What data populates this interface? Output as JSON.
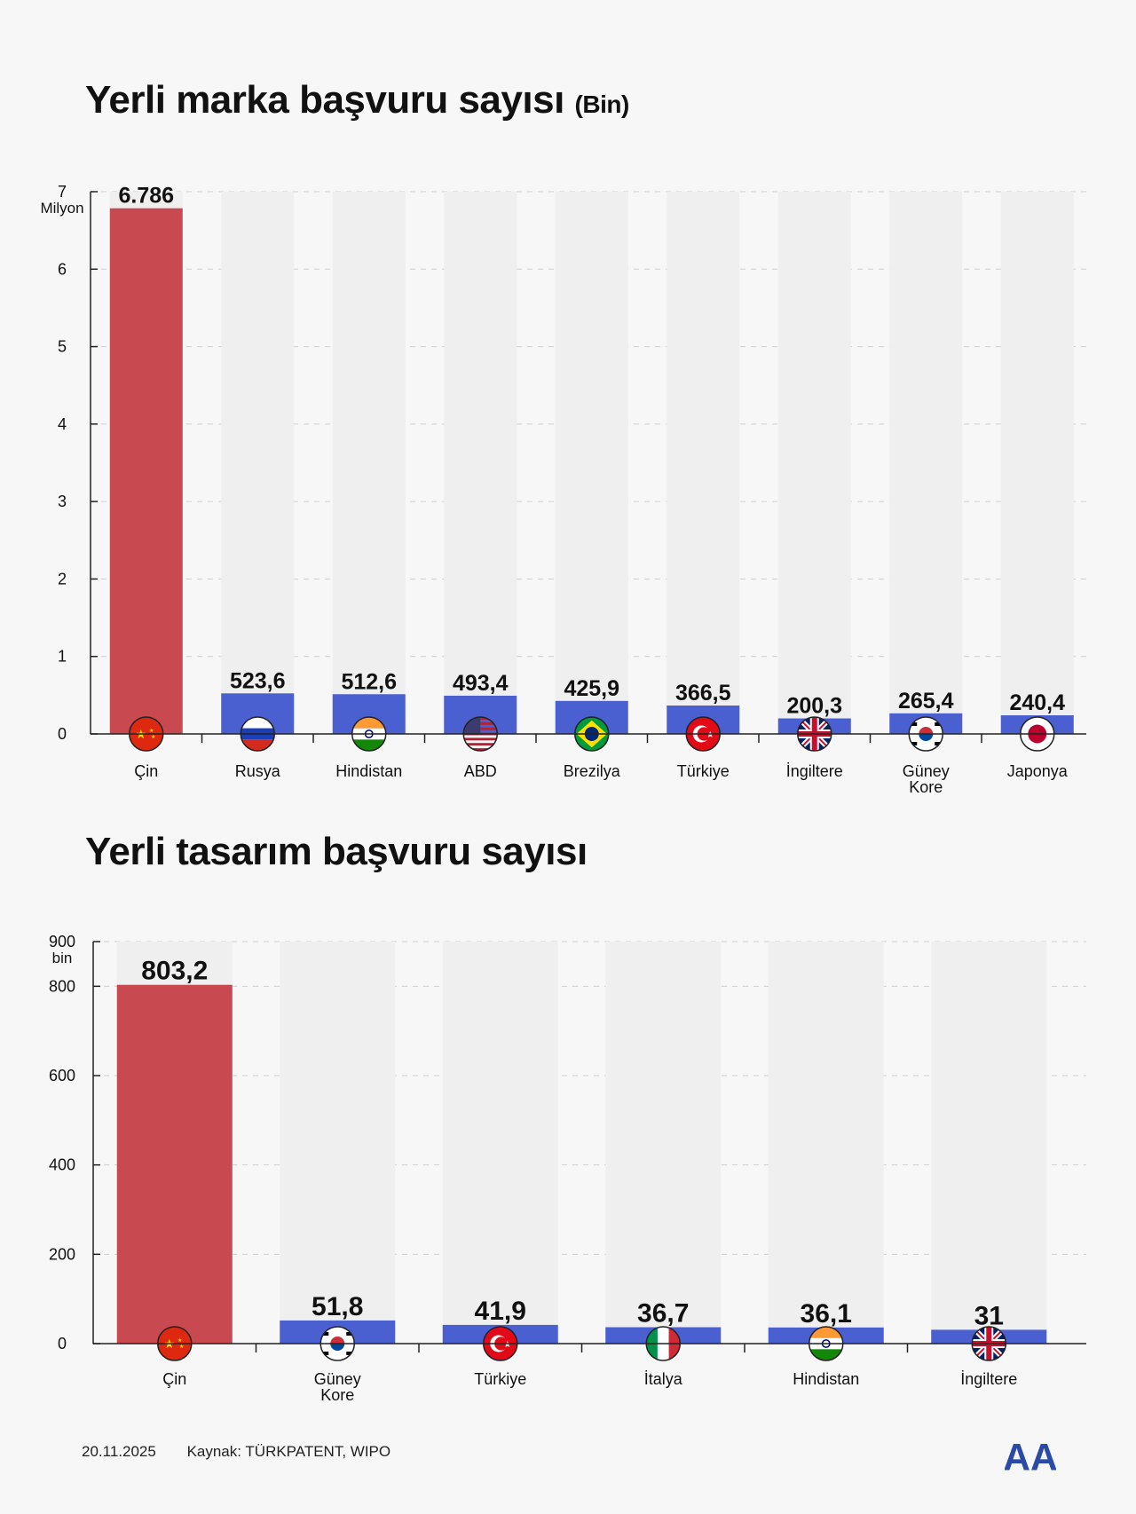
{
  "colors": {
    "highlight": "#c8494f",
    "bar": "#4a5fd0",
    "track": "#efefef",
    "grid": "#cfcfcf",
    "axis": "#222222",
    "logo": "#2a4aa8"
  },
  "chart_data": [
    {
      "type": "bar",
      "title": "Yerli marka başvuru sayısı",
      "title_unit": "(Bin)",
      "y_unit_label": "Milyon",
      "ylim": [
        0,
        7
      ],
      "y_ticks": [
        "0",
        "1",
        "2",
        "3",
        "4",
        "5",
        "6",
        "7"
      ],
      "grid": true,
      "categories": [
        "Çin",
        "Rusya",
        "Hindistan",
        "ABD",
        "Brezilya",
        "Türkiye",
        "İngiltere",
        "Güney Kore",
        "Japonya"
      ],
      "values": [
        6786,
        523.6,
        512.6,
        493.4,
        425.9,
        366.5,
        200.3,
        265.4,
        240.4
      ],
      "value_labels": [
        "6.786",
        "523,6",
        "512,6",
        "493,4",
        "425,9",
        "366,5",
        "200,3",
        "265,4",
        "240,4"
      ],
      "value_units": "bin",
      "flags": [
        "china-flag-icon",
        "russia-flag-icon",
        "india-flag-icon",
        "usa-flag-icon",
        "brazil-flag-icon",
        "turkey-flag-icon",
        "uk-flag-icon",
        "south-korea-flag-icon",
        "japan-flag-icon"
      ],
      "highlight_index": 0
    },
    {
      "type": "bar",
      "title": "Yerli tasarım başvuru sayısı",
      "y_unit_label": "bin",
      "ylim": [
        0,
        900
      ],
      "y_ticks": [
        "0",
        "200",
        "400",
        "600",
        "800",
        "900"
      ],
      "grid": true,
      "categories": [
        "Çin",
        "Güney Kore",
        "Türkiye",
        "İtalya",
        "Hindistan",
        "İngiltere"
      ],
      "values": [
        803.2,
        51.8,
        41.9,
        36.7,
        36.1,
        31
      ],
      "value_labels": [
        "803,2",
        "51,8",
        "41,9",
        "36,7",
        "36,1",
        "31"
      ],
      "flags": [
        "china-flag-icon",
        "south-korea-flag-icon",
        "turkey-flag-icon",
        "italy-flag-icon",
        "india-flag-icon",
        "uk-flag-icon"
      ],
      "highlight_index": 0
    }
  ],
  "footer": {
    "date": "20.11.2025",
    "source": "Kaynak: TÜRKPATENT, WIPO"
  },
  "logo": {
    "icon": "aa-logo-icon",
    "text": "AA"
  }
}
